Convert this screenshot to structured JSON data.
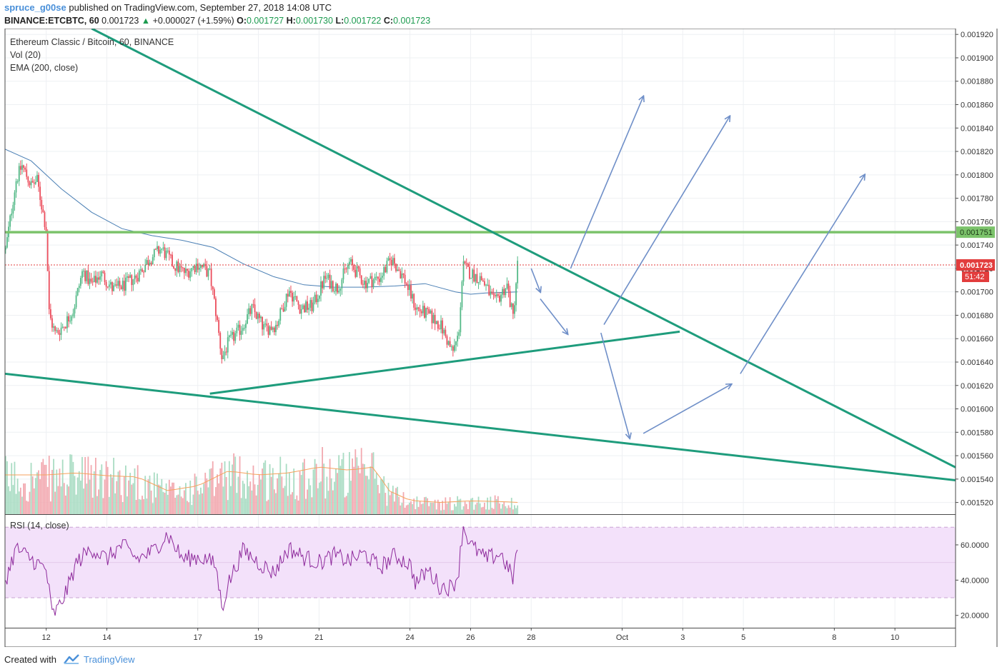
{
  "header": {
    "author": "spruce_g00se",
    "published_text": "published on TradingView.com, September 27, 2018 14:08 UTC",
    "symbol_line": "BINANCE:ETCBTC, 60",
    "last": "0.001723",
    "change": "+0.000027 (+1.59%)",
    "o_label": "O:",
    "o": "0.001727",
    "h_label": "H:",
    "h": "0.001730",
    "l_label": "L:",
    "l": "0.001722",
    "c_label": "C:",
    "c": "0.001723"
  },
  "legend": {
    "main": "Ethereum Classic / Bitcoin, 60, BINANCE",
    "volume": "Vol (20)",
    "ema": "EMA (200, close)",
    "rsi": "RSI (14, close)"
  },
  "price_label": {
    "value": "0.001723",
    "countdown": "51:42"
  },
  "level_label": "0.001751",
  "footer": {
    "created": "Created with",
    "brand": "TradingView"
  },
  "colors": {
    "up": "#53b987",
    "down": "#eb4d5c",
    "trendline": "#1e9c7c",
    "level": "#7cc36b",
    "arrows": "#6f8fc8",
    "ema": "#4a7fb4",
    "rsi": "#8e2a9c",
    "rsi_band": "#f3e1fa",
    "vol_ma": "#f5a25c",
    "current_price": "#e23d3d"
  },
  "chart_data": {
    "type": "candlestick",
    "title": "Ethereum Classic / Bitcoin, 60, BINANCE",
    "y_axis": {
      "range": [
        0.00151,
        0.001925
      ],
      "ticks": [
        "0.001520",
        "0.001540",
        "0.001560",
        "0.001580",
        "0.001600",
        "0.001620",
        "0.001640",
        "0.001660",
        "0.001680",
        "0.001700",
        "0.001720",
        "0.001740",
        "0.001760",
        "0.001780",
        "0.001800",
        "0.001820",
        "0.001840",
        "0.001860",
        "0.001880",
        "0.001900",
        "0.001920"
      ]
    },
    "rsi_axis": {
      "range": [
        13,
        77
      ],
      "ticks": [
        "20.0000",
        "40.0000",
        "60.0000"
      ],
      "bands": [
        30,
        70
      ]
    },
    "x_ticks": [
      "12",
      "14",
      "17",
      "19",
      "21",
      "24",
      "26",
      "28",
      "Oct",
      "3",
      "5",
      "8",
      "10"
    ],
    "x_tick_days": [
      12,
      14,
      17,
      19,
      21,
      24,
      26,
      28,
      31,
      33,
      35,
      38,
      40
    ],
    "x_range_days": [
      10.64,
      42
    ],
    "last_candle_day": 27.55,
    "current_price": 0.001723,
    "horizontal_level": 0.001751,
    "price_series_days": [
      10.66,
      11.0,
      11.2,
      11.5,
      11.7,
      12.0,
      12.1,
      12.3,
      12.6,
      12.9,
      13.2,
      13.5,
      13.8,
      14.2,
      14.6,
      15.0,
      15.4,
      15.8,
      16.2,
      16.6,
      17.0,
      17.4,
      17.6,
      17.8,
      18.0,
      18.4,
      18.8,
      19.2,
      19.6,
      20.0,
      20.4,
      20.8,
      21.2,
      21.6,
      22.0,
      22.5,
      23.0,
      23.4,
      23.8,
      24.2,
      24.6,
      25.0,
      25.4,
      25.6,
      25.75,
      26.0,
      26.4,
      26.8,
      27.2,
      27.4,
      27.55
    ],
    "price_series": [
      0.001736,
      0.001795,
      0.001808,
      0.001791,
      0.001795,
      0.001753,
      0.00168,
      0.001664,
      0.001672,
      0.001685,
      0.001718,
      0.001706,
      0.001716,
      0.001702,
      0.001706,
      0.001714,
      0.001728,
      0.001737,
      0.001723,
      0.001716,
      0.001724,
      0.001715,
      0.001682,
      0.001643,
      0.001656,
      0.001668,
      0.001686,
      0.001668,
      0.001672,
      0.001702,
      0.001686,
      0.001688,
      0.001712,
      0.001703,
      0.001725,
      0.001708,
      0.001712,
      0.001728,
      0.001712,
      0.001686,
      0.00168,
      0.001672,
      0.001648,
      0.001662,
      0.001722,
      0.001716,
      0.00171,
      0.00169,
      0.001706,
      0.001678,
      0.001723
    ],
    "ema_days": [
      10.64,
      11.5,
      12.5,
      13.5,
      14.5,
      15.5,
      16.5,
      17.5,
      18.5,
      19.5,
      20.5,
      21.5,
      22.5,
      23.5,
      24.5,
      25.5,
      26.0,
      26.5,
      27.55
    ],
    "ema_values": [
      0.001822,
      0.001812,
      0.001788,
      0.001768,
      0.001754,
      0.001748,
      0.001744,
      0.001738,
      0.001724,
      0.001713,
      0.001706,
      0.001704,
      0.001704,
      0.001705,
      0.001707,
      0.0017,
      0.001698,
      0.001699,
      0.0017
    ],
    "rsi_days": [
      10.66,
      11.0,
      11.5,
      12.0,
      12.2,
      12.4,
      12.7,
      13.0,
      13.5,
      14.0,
      14.5,
      15.0,
      15.5,
      16.0,
      16.5,
      17.0,
      17.3,
      17.6,
      17.8,
      18.0,
      18.5,
      19.0,
      19.5,
      20.0,
      20.5,
      21.0,
      21.5,
      22.0,
      22.5,
      23.0,
      23.5,
      24.0,
      24.2,
      24.6,
      25.0,
      25.4,
      25.6,
      25.75,
      26.0,
      26.5,
      27.0,
      27.4,
      27.55
    ],
    "rsi_values": [
      40,
      58,
      52,
      46,
      20,
      24,
      35,
      50,
      58,
      52,
      60,
      52,
      56,
      66,
      52,
      53,
      52,
      48,
      24,
      38,
      57,
      50,
      44,
      58,
      53,
      50,
      54,
      51,
      55,
      47,
      54,
      49,
      38,
      46,
      36,
      36,
      44,
      71,
      60,
      52,
      55,
      41,
      60
    ],
    "volume_ma_days": [
      10.64,
      12,
      13,
      14,
      15,
      16,
      17,
      18,
      19,
      20,
      21,
      22,
      22.8,
      23.3,
      24,
      25,
      26,
      27,
      27.55
    ],
    "volume_ma": [
      1.0,
      1.0,
      1.05,
      0.98,
      0.95,
      0.6,
      0.72,
      1.1,
      1.0,
      1.05,
      1.2,
      1.12,
      1.2,
      0.6,
      0.35,
      0.3,
      0.34,
      0.32,
      0.3
    ],
    "trendlines": [
      {
        "name": "upper",
        "from": [
          13.5,
          0.001925
        ],
        "to": [
          42,
          0.00155
        ]
      },
      {
        "name": "lower",
        "from": [
          10.64,
          0.00163
        ],
        "to": [
          42,
          0.001539
        ]
      },
      {
        "name": "support",
        "from": [
          17.4,
          0.001613
        ],
        "to": [
          32.9,
          0.001666
        ]
      }
    ],
    "projection_arrows": [
      {
        "from": [
          29.3,
          0.00172
        ],
        "to": [
          31.7,
          0.001867
        ]
      },
      {
        "from": [
          30.4,
          0.001672
        ],
        "to": [
          34.55,
          0.00185
        ]
      },
      {
        "from": [
          34.9,
          0.00163
        ],
        "to": [
          39.0,
          0.0018
        ]
      },
      {
        "from": [
          28.0,
          0.00172
        ],
        "to": [
          28.3,
          0.0017
        ]
      },
      {
        "from": [
          28.3,
          0.001694
        ],
        "to": [
          29.2,
          0.001664
        ]
      },
      {
        "from": [
          30.3,
          0.001665
        ],
        "to": [
          31.25,
          0.001575
        ]
      },
      {
        "from": [
          31.7,
          0.001579
        ],
        "to": [
          34.6,
          0.001621
        ]
      }
    ]
  }
}
